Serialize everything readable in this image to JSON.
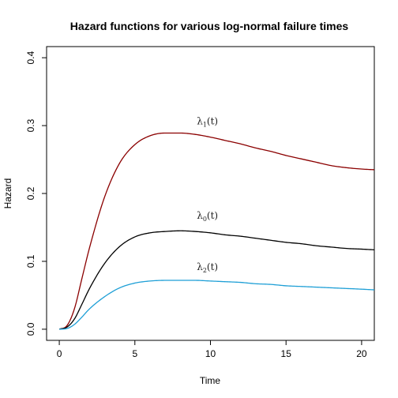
{
  "chart_data": {
    "type": "line",
    "title": "Hazard functions for various log-normal failure times",
    "xlabel": "Time",
    "ylabel": "Hazard",
    "xlim": [
      -0.84,
      20.84
    ],
    "ylim": [
      -0.0164,
      0.4164
    ],
    "x_ticks": [
      0,
      5,
      10,
      15,
      20
    ],
    "x_tick_labels": [
      "0",
      "5",
      "10",
      "15",
      "20"
    ],
    "y_ticks": [
      0.0,
      0.1,
      0.2,
      0.3,
      0.4
    ],
    "y_tick_labels": [
      "0.0",
      "0.1",
      "0.2",
      "0.3",
      "0.4"
    ],
    "grid": false,
    "x": [
      0,
      0.5,
      1,
      1.5,
      2,
      3,
      4,
      5,
      6,
      7,
      8,
      9,
      10,
      11,
      12,
      13,
      14,
      15,
      16,
      17,
      18,
      19,
      20,
      20.84
    ],
    "series": [
      {
        "color": "#8B0000",
        "label_base": "λ",
        "label_sub": "1",
        "label_rest": "(t)",
        "values": [
          0,
          0.005,
          0.03,
          0.075,
          0.12,
          0.195,
          0.245,
          0.272,
          0.285,
          0.289,
          0.289,
          0.287,
          0.283,
          0.278,
          0.273,
          0.267,
          0.262,
          0.256,
          0.251,
          0.246,
          0.241,
          0.238,
          0.236,
          0.235
        ]
      },
      {
        "color": "#000000",
        "label_base": "λ",
        "label_sub": "0",
        "label_rest": "(t)",
        "values": [
          0,
          0.003,
          0.015,
          0.037,
          0.06,
          0.097,
          0.122,
          0.136,
          0.142,
          0.144,
          0.145,
          0.144,
          0.142,
          0.139,
          0.137,
          0.134,
          0.131,
          0.128,
          0.126,
          0.123,
          0.121,
          0.119,
          0.118,
          0.117
        ]
      },
      {
        "color": "#1E9FD6",
        "label_base": "λ",
        "label_sub": "2",
        "label_rest": "(t)",
        "values": [
          0,
          0.001,
          0.007,
          0.018,
          0.03,
          0.048,
          0.061,
          0.068,
          0.071,
          0.072,
          0.072,
          0.072,
          0.071,
          0.07,
          0.069,
          0.067,
          0.066,
          0.064,
          0.063,
          0.062,
          0.061,
          0.06,
          0.059,
          0.058
        ]
      }
    ],
    "label_positions": [
      {
        "x": 9.8,
        "y": 0.302
      },
      {
        "x": 9.8,
        "y": 0.163
      },
      {
        "x": 9.8,
        "y": 0.087
      }
    ]
  }
}
